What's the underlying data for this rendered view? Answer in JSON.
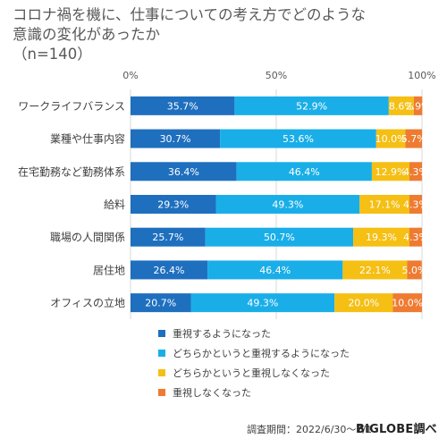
{
  "title_lines": [
    "コロナ禍を機に、仕事についての考え方でどのような",
    "意識の変化があったか",
    "（n=140）"
  ],
  "footer": {
    "period": "調査期間：2022/6/30〜7/1",
    "brand": "BIGLOBE調べ"
  },
  "chart_data": {
    "type": "bar",
    "orientation": "horizontal-stacked-100",
    "title": "コロナ禍を機に、仕事についての考え方でどのような意識の変化があったか（n=140）",
    "categories": [
      "ワークライフバランス",
      "業種や仕事内容",
      "在宅勤務など勤務体系",
      "給料",
      "職場の人間関係",
      "居住地",
      "オフィスの立地"
    ],
    "x_ticks": [
      "0%",
      "50%",
      "100%"
    ],
    "xlim": [
      0,
      100
    ],
    "grid": true,
    "legend_position": "bottom-left",
    "series": [
      {
        "name": "重視するようになった",
        "color": "#1f6fbf",
        "values": [
          35.7,
          30.7,
          36.4,
          29.3,
          25.7,
          26.4,
          20.7
        ],
        "labels": [
          "35.7%",
          "30.7%",
          "36.4%",
          "29.3%",
          "25.7%",
          "26.4%",
          "20.7%"
        ]
      },
      {
        "name": "どちらかというと重視するようになった",
        "color": "#1aaee8",
        "values": [
          52.9,
          53.6,
          46.4,
          49.3,
          50.7,
          46.4,
          49.3
        ],
        "labels": [
          "52.9%",
          "53.6%",
          "46.4%",
          "49.3%",
          "50.7%",
          "46.4%",
          "49.3%"
        ]
      },
      {
        "name": "どちらかというと重視しなくなった",
        "color": "#f5bf14",
        "values": [
          8.6,
          10.0,
          12.9,
          17.1,
          19.3,
          22.1,
          20.0
        ],
        "labels": [
          "8.6%",
          "10.0%",
          "12.9%",
          "17.1%",
          "19.3%",
          "22.1%",
          "20.0%"
        ]
      },
      {
        "name": "重視しなくなった",
        "color": "#ee7b31",
        "values": [
          2.9,
          5.7,
          4.3,
          4.3,
          4.3,
          5.0,
          10.0
        ],
        "labels": [
          "2.9%",
          "5.7%",
          "4.3%",
          "4.3%",
          "4.3%",
          "5.0%",
          "10.0%"
        ]
      }
    ]
  }
}
